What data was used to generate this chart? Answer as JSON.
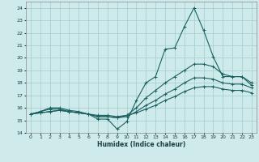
{
  "xlabel": "Humidex (Indice chaleur)",
  "xlim": [
    -0.5,
    23.5
  ],
  "ylim": [
    14,
    24.5
  ],
  "yticks": [
    14,
    15,
    16,
    17,
    18,
    19,
    20,
    21,
    22,
    23,
    24
  ],
  "xticks": [
    0,
    1,
    2,
    3,
    4,
    5,
    6,
    7,
    8,
    9,
    10,
    11,
    12,
    13,
    14,
    15,
    16,
    17,
    18,
    19,
    20,
    21,
    22,
    23
  ],
  "bg_color": "#ceeaea",
  "grid_color": "#a0cccc",
  "line_color": "#1a6060",
  "lines": [
    {
      "x": [
        0,
        1,
        2,
        3,
        4,
        5,
        6,
        7,
        8,
        9,
        10,
        11,
        12,
        13,
        14,
        15,
        16,
        17,
        18,
        19,
        20,
        21,
        22,
        23
      ],
      "y": [
        15.5,
        15.7,
        16.0,
        16.0,
        15.8,
        15.7,
        15.5,
        15.1,
        15.1,
        14.3,
        14.9,
        16.6,
        18.0,
        18.5,
        20.7,
        20.8,
        22.5,
        24.0,
        22.2,
        20.1,
        18.5,
        18.5,
        18.5,
        17.8
      ]
    },
    {
      "x": [
        0,
        1,
        2,
        3,
        4,
        5,
        6,
        7,
        8,
        9,
        10,
        11,
        12,
        13,
        14,
        15,
        16,
        17,
        18,
        19,
        20,
        21,
        22,
        23
      ],
      "y": [
        15.5,
        15.7,
        15.9,
        15.9,
        15.7,
        15.6,
        15.5,
        15.3,
        15.3,
        15.2,
        15.4,
        16.0,
        16.8,
        17.4,
        18.0,
        18.5,
        19.0,
        19.5,
        19.5,
        19.3,
        18.7,
        18.5,
        18.5,
        18.0
      ]
    },
    {
      "x": [
        0,
        1,
        2,
        3,
        4,
        5,
        6,
        7,
        8,
        9,
        10,
        11,
        12,
        13,
        14,
        15,
        16,
        17,
        18,
        19,
        20,
        21,
        22,
        23
      ],
      "y": [
        15.5,
        15.6,
        15.7,
        15.8,
        15.7,
        15.6,
        15.5,
        15.3,
        15.3,
        15.2,
        15.3,
        15.7,
        16.2,
        16.6,
        17.1,
        17.5,
        18.0,
        18.4,
        18.4,
        18.3,
        18.0,
        17.9,
        17.9,
        17.6
      ]
    },
    {
      "x": [
        0,
        1,
        2,
        3,
        4,
        5,
        6,
        7,
        8,
        9,
        10,
        11,
        12,
        13,
        14,
        15,
        16,
        17,
        18,
        19,
        20,
        21,
        22,
        23
      ],
      "y": [
        15.5,
        15.6,
        15.7,
        15.8,
        15.7,
        15.6,
        15.5,
        15.4,
        15.4,
        15.3,
        15.4,
        15.6,
        15.9,
        16.2,
        16.6,
        16.9,
        17.3,
        17.6,
        17.7,
        17.7,
        17.5,
        17.4,
        17.4,
        17.2
      ]
    }
  ]
}
